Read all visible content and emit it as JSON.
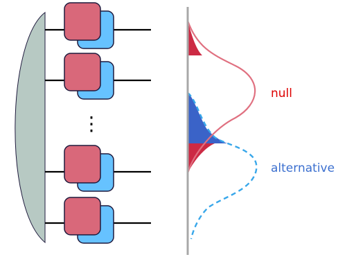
{
  "labels": {
    "null": "null",
    "alternative": "alternative",
    "ellipsis": "⋮"
  },
  "colors": {
    "lens_fill": "#b7c9c3",
    "box_front": "#d9687a",
    "box_back": "#66c2ff",
    "box_stroke": "#1f1a3d",
    "wire": "#000000",
    "axis": "#a8a8a8",
    "null_curve": "#e07080",
    "null_fill": "#cc2a44",
    "alt_curve": "#38a7ea",
    "alt_fill": "#3a63c8",
    "null_text": "#dd0000",
    "alt_text": "#3b6fcf"
  }
}
